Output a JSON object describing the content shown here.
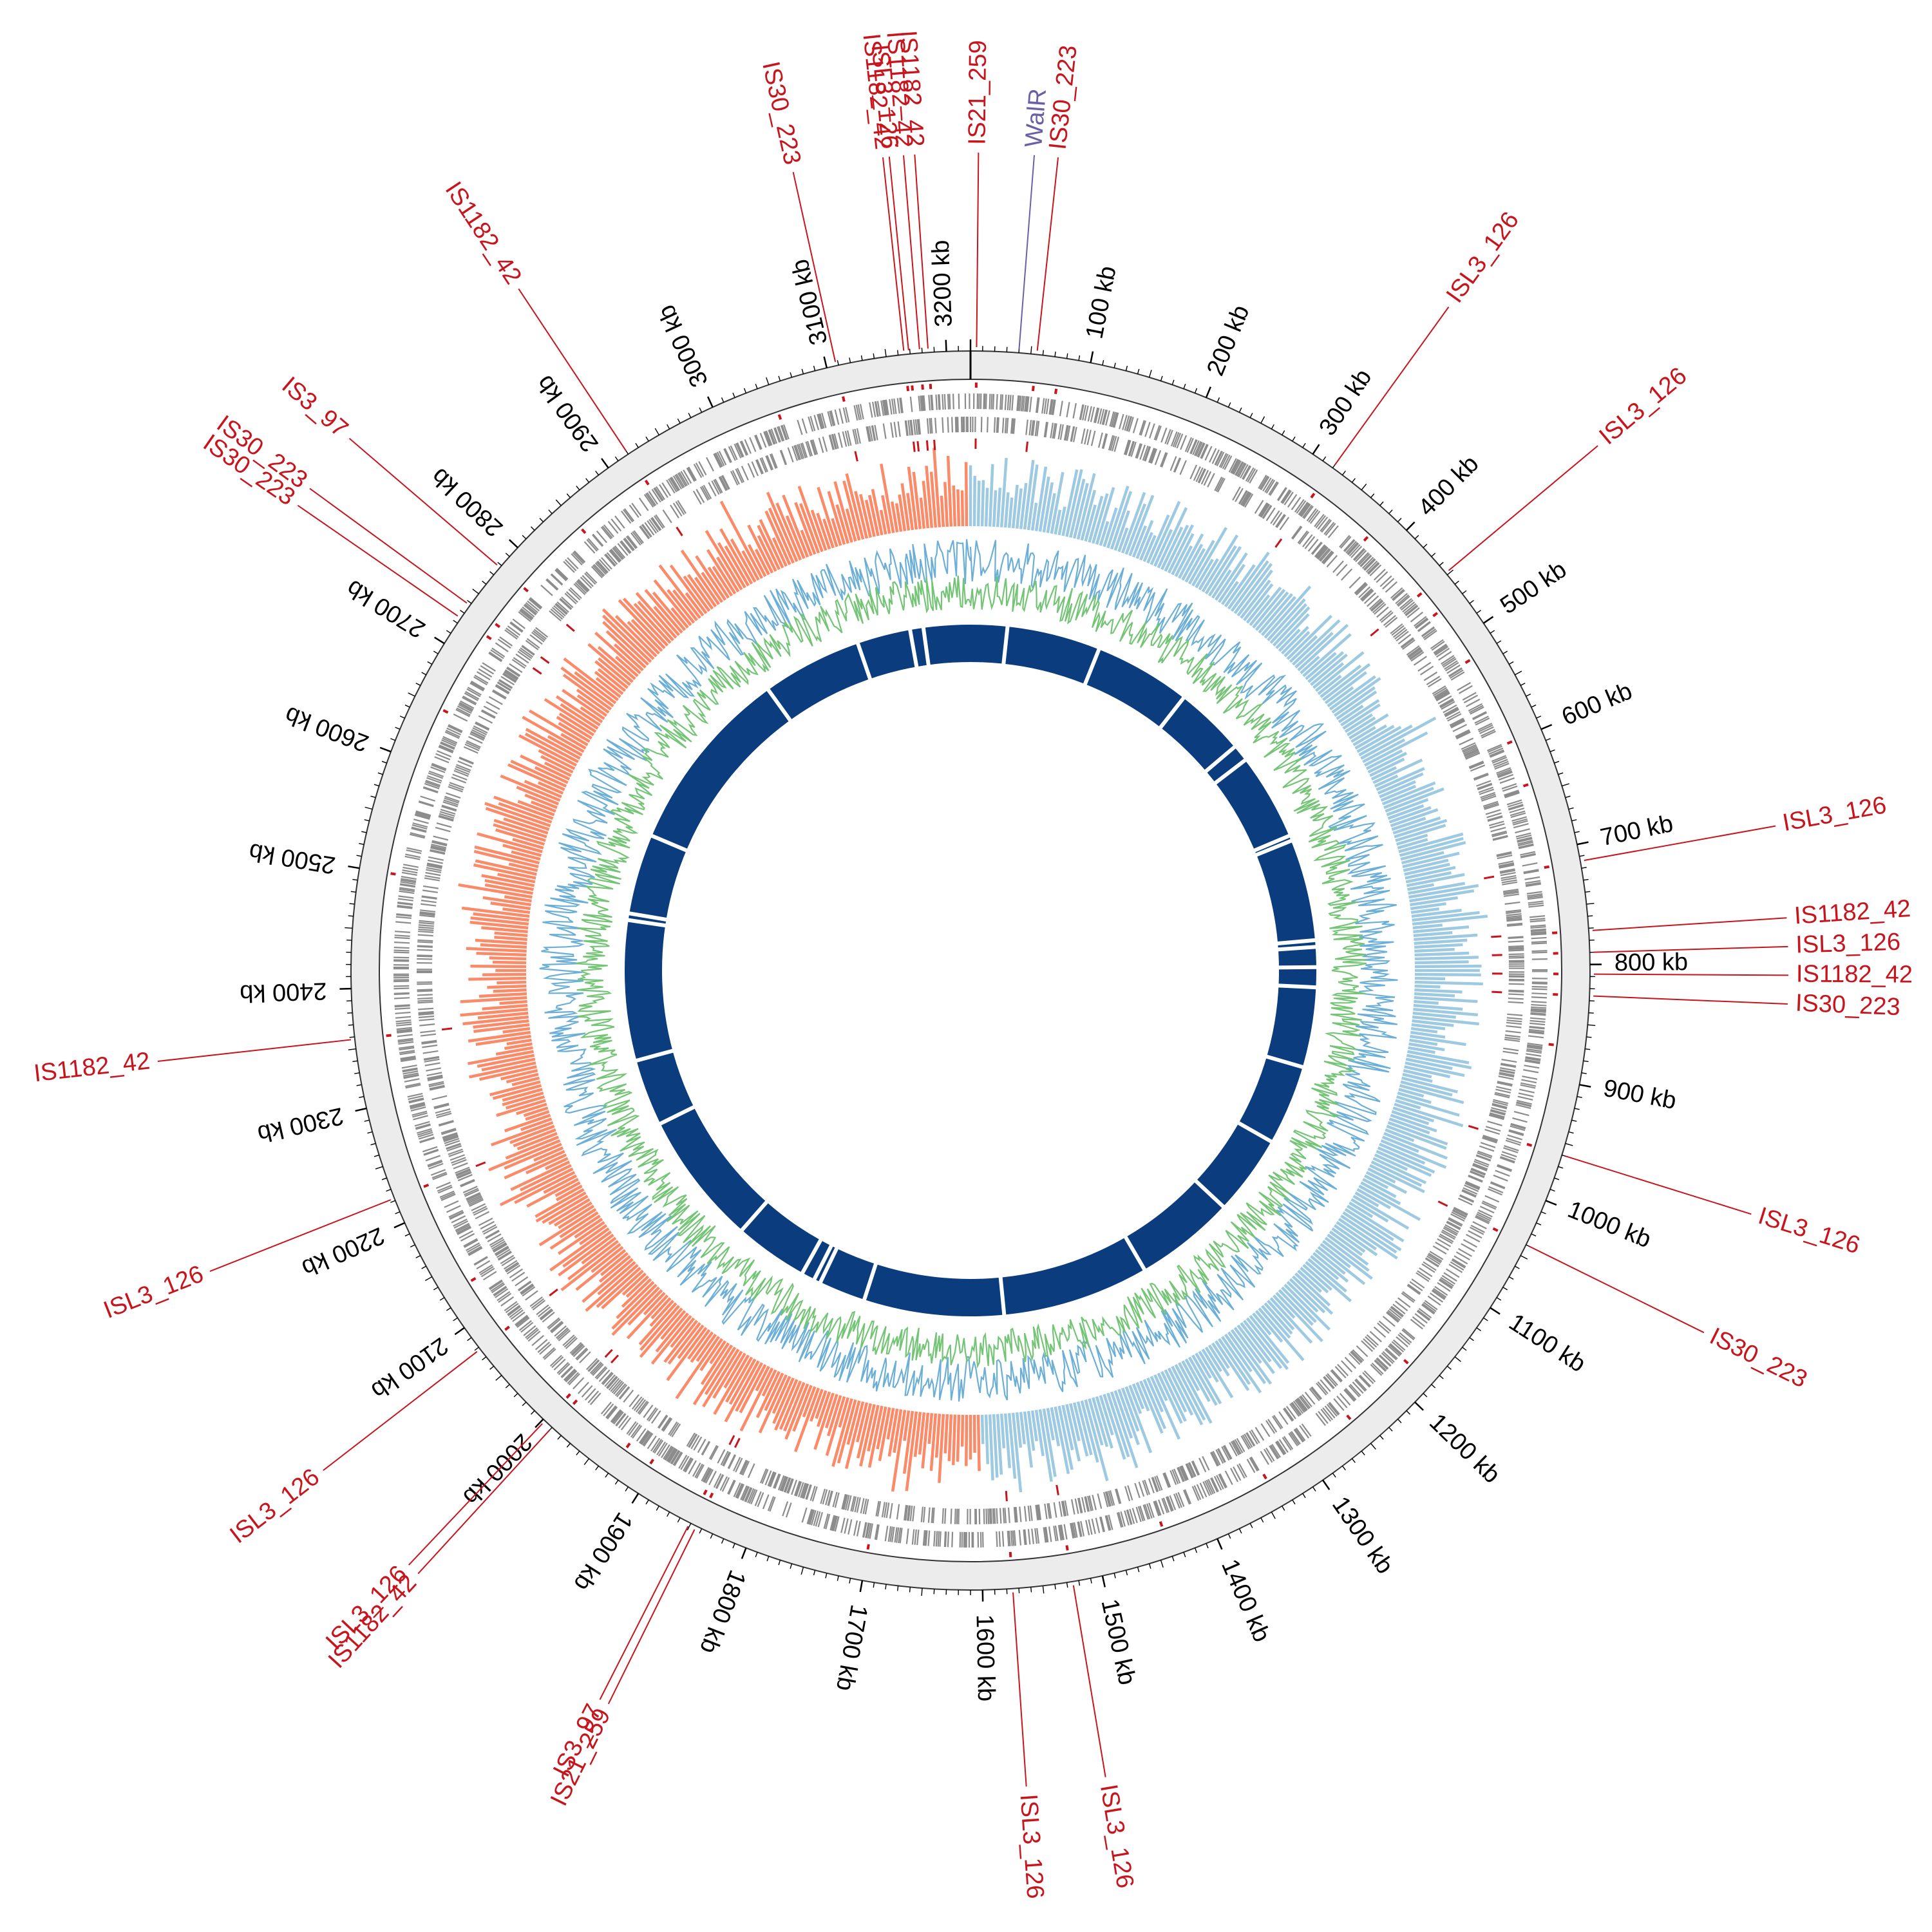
{
  "genome": {
    "length_kb": 3220,
    "tick_unit": "kb",
    "major_ticks_kb": [
      100,
      200,
      300,
      400,
      500,
      600,
      700,
      800,
      900,
      1000,
      1100,
      1200,
      1300,
      1400,
      1500,
      1600,
      1700,
      1800,
      1900,
      2000,
      2100,
      2200,
      2300,
      2400,
      2500,
      2600,
      2700,
      2800,
      2900,
      3000,
      3100,
      3200
    ]
  },
  "colors": {
    "is_element": "#c8141c",
    "gene_feature": "#6b5fa6",
    "backbone": "#ececec",
    "cds": "#8c8c8c",
    "gc_skew_positive": "#9ecae1",
    "gc_skew_negative": "#fb8a68",
    "gc_content_outer": "#6baed6",
    "gc_content_inner": "#74c476",
    "inner_ring": "#0b3d7e"
  },
  "labels": [
    {
      "text": "IS21_259",
      "kb": 5,
      "type": "is"
    },
    {
      "text": "WalR",
      "kb": 40,
      "type": "gene"
    },
    {
      "text": "IS30_223",
      "kb": 55,
      "type": "is"
    },
    {
      "text": "ISL3_126",
      "kb": 320,
      "type": "is"
    },
    {
      "text": "ISL3_126",
      "kb": 448,
      "type": "is"
    },
    {
      "text": "ISL3_126",
      "kb": 714,
      "type": "is"
    },
    {
      "text": "IS1182_42",
      "kb": 772,
      "type": "is"
    },
    {
      "text": "ISL3_126",
      "kb": 790,
      "type": "is"
    },
    {
      "text": "IS1182_42",
      "kb": 808,
      "type": "is"
    },
    {
      "text": "IS30_223",
      "kb": 826,
      "type": "is"
    },
    {
      "text": "ISL3_126",
      "kb": 960,
      "type": "is"
    },
    {
      "text": "IS30_223",
      "kb": 1040,
      "type": "is"
    },
    {
      "text": "ISL3_126",
      "kb": 1575,
      "type": "is"
    },
    {
      "text": "ISL3_126",
      "kb": 1525,
      "type": "is"
    },
    {
      "text": "IS21_259",
      "kb": 1845,
      "type": "is"
    },
    {
      "text": "IS3_97",
      "kb": 1851,
      "type": "is"
    },
    {
      "text": "IS1182_42",
      "kb": 1990,
      "type": "is"
    },
    {
      "text": "ISL3_126",
      "kb": 1998,
      "type": "is"
    },
    {
      "text": "ISL3_126",
      "kb": 2078,
      "type": "is"
    },
    {
      "text": "ISL3_126",
      "kb": 2222,
      "type": "is"
    },
    {
      "text": "IS1182_42",
      "kb": 2358,
      "type": "is"
    },
    {
      "text": "IS30_223",
      "kb": 2725,
      "type": "is"
    },
    {
      "text": "IS30_223",
      "kb": 2738,
      "type": "is"
    },
    {
      "text": "IS3_97",
      "kb": 2778,
      "type": "is"
    },
    {
      "text": "IS1182_42",
      "kb": 2920,
      "type": "is"
    },
    {
      "text": "IS30_223",
      "kb": 3108,
      "type": "is"
    },
    {
      "text": "IS1182_42",
      "kb": 3165,
      "type": "is"
    },
    {
      "text": "ISL3_126",
      "kb": 3169,
      "type": "is"
    },
    {
      "text": "IS1182_42",
      "kb": 3178,
      "type": "is"
    },
    {
      "text": "IS1182_42",
      "kb": 3185,
      "type": "is"
    }
  ]
}
